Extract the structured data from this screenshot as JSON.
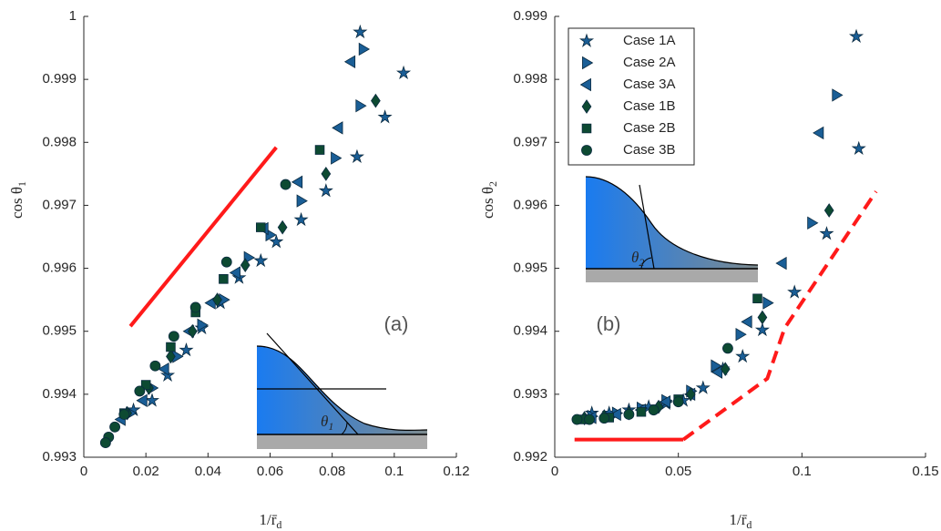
{
  "chart_data": [
    {
      "type": "scatter",
      "annotation": "(a)",
      "inset_label": "θ",
      "inset_label_sub": "1",
      "xlabel": "1/r̄",
      "xlabel_sub": "d",
      "ylabel": "cos θ",
      "ylabel_sub": "1",
      "xlim": [
        0,
        0.12
      ],
      "xticks": [
        0,
        0.02,
        0.04,
        0.06,
        0.08,
        0.1,
        0.12
      ],
      "ylim": [
        0.993,
        1
      ],
      "yticks": [
        0.993,
        0.994,
        0.995,
        0.996,
        0.997,
        0.998,
        0.999,
        1
      ],
      "series": [
        {
          "name": "Case 1A",
          "color": "#1a5e96",
          "marker": "star",
          "x": [
            0.089,
            0.103,
            0.097,
            0.088,
            0.078,
            0.07,
            0.062,
            0.057,
            0.05,
            0.044,
            0.038,
            0.033,
            0.027,
            0.022,
            0.016
          ],
          "values": [
            0.99975,
            0.9991,
            0.9984,
            0.99777,
            0.99723,
            0.99677,
            0.99642,
            0.99612,
            0.99585,
            0.99545,
            0.99505,
            0.9947,
            0.9943,
            0.9939,
            0.99375
          ]
        },
        {
          "name": "Case 2A",
          "color": "#1a5e96",
          "marker": "tri-right",
          "x": [
            0.09,
            0.089,
            0.081,
            0.07,
            0.06,
            0.053,
            0.045,
            0.038,
            0.03,
            0.022,
            0.015
          ],
          "values": [
            0.99948,
            0.99858,
            0.99775,
            0.99707,
            0.99653,
            0.99617,
            0.9955,
            0.9951,
            0.9946,
            0.9941,
            0.9937
          ]
        },
        {
          "name": "Case 3A",
          "color": "#1a5e96",
          "marker": "tri-left",
          "x": [
            0.086,
            0.082,
            0.069,
            0.058,
            0.049,
            0.041,
            0.034,
            0.026,
            0.019,
            0.012
          ],
          "values": [
            0.99928,
            0.99823,
            0.99737,
            0.99663,
            0.99593,
            0.99545,
            0.995,
            0.9944,
            0.9939,
            0.9936
          ]
        },
        {
          "name": "Case 1B",
          "color": "#0d4a32",
          "marker": "diamond",
          "x": [
            0.094,
            0.078,
            0.064,
            0.052,
            0.043,
            0.035,
            0.028,
            0.021,
            0.014
          ],
          "values": [
            0.99866,
            0.9975,
            0.99665,
            0.99605,
            0.9955,
            0.995,
            0.9946,
            0.9941,
            0.9937
          ]
        },
        {
          "name": "Case 2B",
          "color": "#0d4a32",
          "marker": "square",
          "x": [
            0.076,
            0.057,
            0.045,
            0.036,
            0.028,
            0.02,
            0.013
          ],
          "values": [
            0.99788,
            0.99665,
            0.99583,
            0.9953,
            0.99475,
            0.99415,
            0.9937
          ]
        },
        {
          "name": "Case 3B",
          "color": "#0d4a32",
          "marker": "circle",
          "x": [
            0.065,
            0.046,
            0.036,
            0.029,
            0.023,
            0.018,
            0.013,
            0.01,
            0.008,
            0.007
          ],
          "values": [
            0.99733,
            0.9961,
            0.99538,
            0.99492,
            0.99445,
            0.99405,
            0.99368,
            0.99348,
            0.99332,
            0.99323
          ]
        },
        {
          "color": "#ff1a1a",
          "line_style": "solid",
          "x": [
            0.015,
            0.062
          ],
          "values": [
            0.99508,
            0.99792
          ]
        }
      ]
    },
    {
      "type": "scatter",
      "annotation": "(b)",
      "inset_label": "θ",
      "inset_label_sub": "2",
      "legend": "upper left",
      "xlabel": "1/r̄",
      "xlabel_sub": "d",
      "ylabel": "cos θ",
      "ylabel_sub": "2",
      "xlim": [
        0,
        0.15
      ],
      "xticks": [
        0,
        0.05,
        0.1,
        0.15
      ],
      "ylim": [
        0.992,
        0.999
      ],
      "yticks": [
        0.992,
        0.993,
        0.994,
        0.995,
        0.996,
        0.997,
        0.998,
        0.999
      ],
      "series": [
        {
          "name": "Case 1A",
          "color": "#1a5e96",
          "marker": "star",
          "x": [
            0.122,
            0.123,
            0.11,
            0.097,
            0.084,
            0.076,
            0.068,
            0.06,
            0.052,
            0.045,
            0.038,
            0.03,
            0.022,
            0.015
          ],
          "values": [
            0.99868,
            0.9969,
            0.99555,
            0.99462,
            0.99402,
            0.9936,
            0.9934,
            0.9931,
            0.9929,
            0.99285,
            0.9928,
            0.99275,
            0.9927,
            0.9927
          ]
        },
        {
          "name": "Case 2A",
          "color": "#1a5e96",
          "marker": "tri-right",
          "x": [
            0.114,
            0.104,
            0.086,
            0.075,
            0.065,
            0.055,
            0.045,
            0.035,
            0.025,
            0.015
          ],
          "values": [
            0.99775,
            0.99572,
            0.99445,
            0.99395,
            0.99345,
            0.99305,
            0.9929,
            0.99278,
            0.9927,
            0.99265
          ]
        },
        {
          "name": "Case 3A",
          "color": "#1a5e96",
          "marker": "tri-left",
          "x": [
            0.107,
            0.092,
            0.078,
            0.066,
            0.055,
            0.045,
            0.035,
            0.025,
            0.015
          ],
          "values": [
            0.99715,
            0.99508,
            0.99415,
            0.99335,
            0.993,
            0.99288,
            0.99275,
            0.99268,
            0.99263
          ]
        },
        {
          "name": "Case 1B",
          "color": "#0d4a32",
          "marker": "diamond",
          "x": [
            0.111,
            0.084,
            0.069,
            0.055,
            0.042,
            0.03,
            0.02,
            0.012
          ],
          "values": [
            0.99592,
            0.99422,
            0.9934,
            0.993,
            0.9928,
            0.9927,
            0.99265,
            0.99262
          ]
        },
        {
          "name": "Case 2B",
          "color": "#0d4a32",
          "marker": "square",
          "x": [
            0.082,
            0.05,
            0.035,
            0.022,
            0.012
          ],
          "values": [
            0.99452,
            0.99292,
            0.99272,
            0.99263,
            0.9926
          ]
        },
        {
          "name": "Case 3B",
          "color": "#0d4a32",
          "marker": "circle",
          "x": [
            0.07,
            0.05,
            0.04,
            0.03,
            0.02,
            0.014,
            0.009
          ],
          "values": [
            0.99373,
            0.99288,
            0.99275,
            0.99268,
            0.99262,
            0.9926,
            0.9926
          ]
        },
        {
          "color": "#ff1a1a",
          "line_style": "solid",
          "x": [
            0.008,
            0.052
          ],
          "values": [
            0.99228,
            0.99228
          ]
        },
        {
          "color": "#ff1a1a",
          "line_style": "dashed",
          "x": [
            0.052,
            0.086,
            0.093,
            0.13
          ],
          "values": [
            0.99228,
            0.99325,
            0.99405,
            0.99622
          ]
        }
      ]
    }
  ]
}
